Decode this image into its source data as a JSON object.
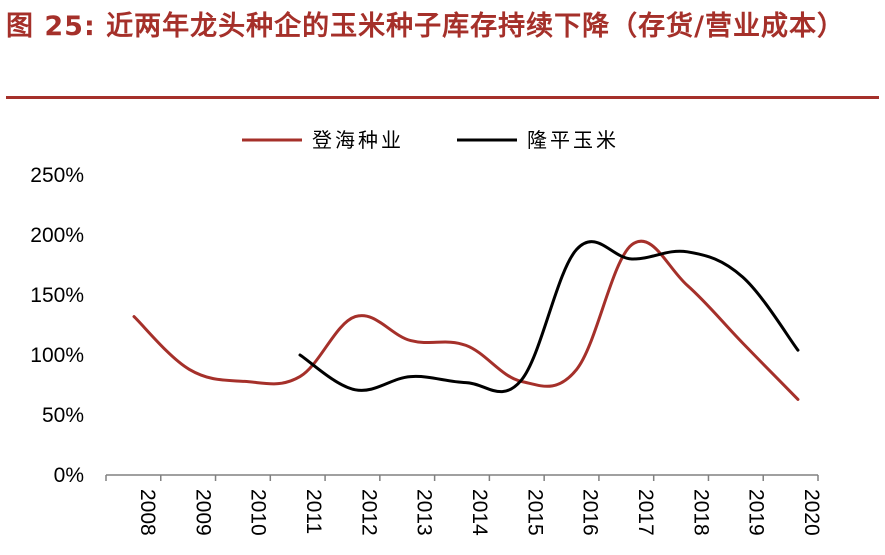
{
  "figure": {
    "title": "图 25: 近两年龙头种企的玉米种子库存持续下降（存货/营业成本）"
  },
  "colors": {
    "title": "#a5302a",
    "rule": "#a5302a"
  },
  "chart_data": {
    "type": "line",
    "x": [
      "2008",
      "2009",
      "2010",
      "2011",
      "2012",
      "2013",
      "2014",
      "2015",
      "2016",
      "2017",
      "2018",
      "2019",
      "2020"
    ],
    "yticks": [
      "0%",
      "50%",
      "100%",
      "150%",
      "200%",
      "250%"
    ],
    "ylim": [
      0,
      250
    ],
    "legend_position": "top-center",
    "series": [
      {
        "name": "登海种业",
        "color": "#a5302a",
        "values": [
          132,
          88,
          78,
          82,
          132,
          112,
          108,
          78,
          88,
          192,
          158,
          110,
          63
        ]
      },
      {
        "name": "隆平玉米",
        "color": "#000000",
        "values": [
          null,
          null,
          null,
          100,
          71,
          82,
          77,
          79,
          188,
          180,
          186,
          165,
          104
        ]
      }
    ]
  }
}
